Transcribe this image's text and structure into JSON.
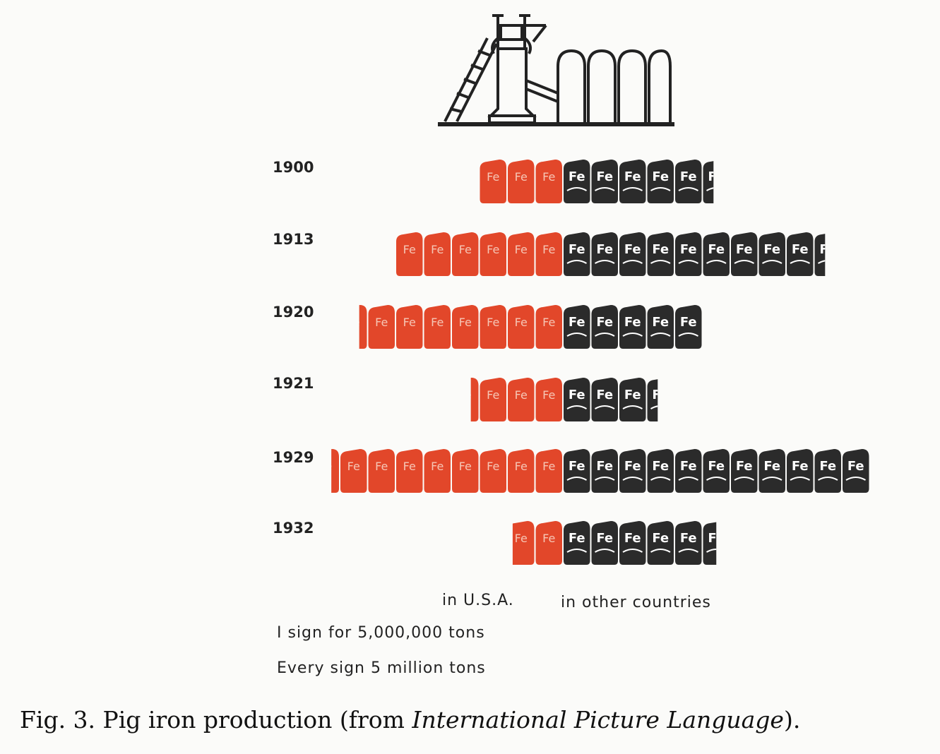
{
  "chart_data": {
    "type": "bar",
    "categories": [
      "1900",
      "1913",
      "1920",
      "1921",
      "1929",
      "1932"
    ],
    "series": [
      {
        "name": "in U.S.A.",
        "values": [
          3,
          6,
          7.3,
          3.3,
          8.3,
          1.8
        ]
      },
      {
        "name": "in other countries",
        "values": [
          5.4,
          9.4,
          5,
          3.4,
          11,
          5.5
        ]
      }
    ],
    "unit_symbol": "Fe",
    "colors": {
      "usa": "#e2472a",
      "other": "#2b2b2b"
    }
  },
  "legend": {
    "usa_label": "in U.S.A.",
    "other_label": "in other countries",
    "scale_line1": "I sign for 5,000,000 tons",
    "scale_line2": "Every sign 5 million tons"
  },
  "caption": {
    "prefix": "Fig. 3. Pig iron production (from ",
    "italic": "International Picture Language",
    "suffix": ")."
  },
  "icons": {
    "header": "blast-furnace-icon"
  }
}
